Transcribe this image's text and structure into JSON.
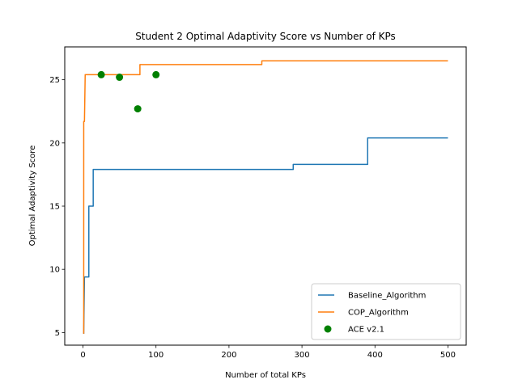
{
  "chart_data": {
    "type": "line",
    "title": "Student 2 Optimal Adaptivity Score vs Number of KPs",
    "xlabel": "Number of total KPs",
    "ylabel": "Optimal Adaptivity Score",
    "xlim": [
      -25,
      525
    ],
    "ylim": [
      4,
      27.6
    ],
    "xticks": [
      0,
      100,
      200,
      300,
      400,
      500
    ],
    "yticks": [
      5,
      10,
      15,
      20,
      25
    ],
    "grid": false,
    "legend_position": "lower-right",
    "series": [
      {
        "name": "Baseline_Algorithm",
        "kind": "line",
        "color": "#1f77b4",
        "points": [
          [
            1,
            4.9
          ],
          [
            2,
            9.4
          ],
          [
            8,
            9.4
          ],
          [
            8,
            15.0
          ],
          [
            14,
            15.0
          ],
          [
            14,
            17.9
          ],
          [
            288,
            17.9
          ],
          [
            288,
            18.3
          ],
          [
            390,
            18.3
          ],
          [
            390,
            20.4
          ],
          [
            500,
            20.4
          ]
        ]
      },
      {
        "name": "COP_Algorithm",
        "kind": "line",
        "color": "#ff7f0e",
        "points": [
          [
            1,
            4.9
          ],
          [
            1,
            21.7
          ],
          [
            2,
            21.7
          ],
          [
            3,
            25.4
          ],
          [
            78,
            25.4
          ],
          [
            78,
            26.2
          ],
          [
            245,
            26.2
          ],
          [
            245,
            26.5
          ],
          [
            500,
            26.5
          ]
        ]
      },
      {
        "name": "ACE v2.1",
        "kind": "scatter",
        "color": "#008000",
        "points": [
          [
            25,
            25.4
          ],
          [
            50,
            25.2
          ],
          [
            75,
            22.7
          ],
          [
            100,
            25.4
          ]
        ]
      }
    ]
  }
}
